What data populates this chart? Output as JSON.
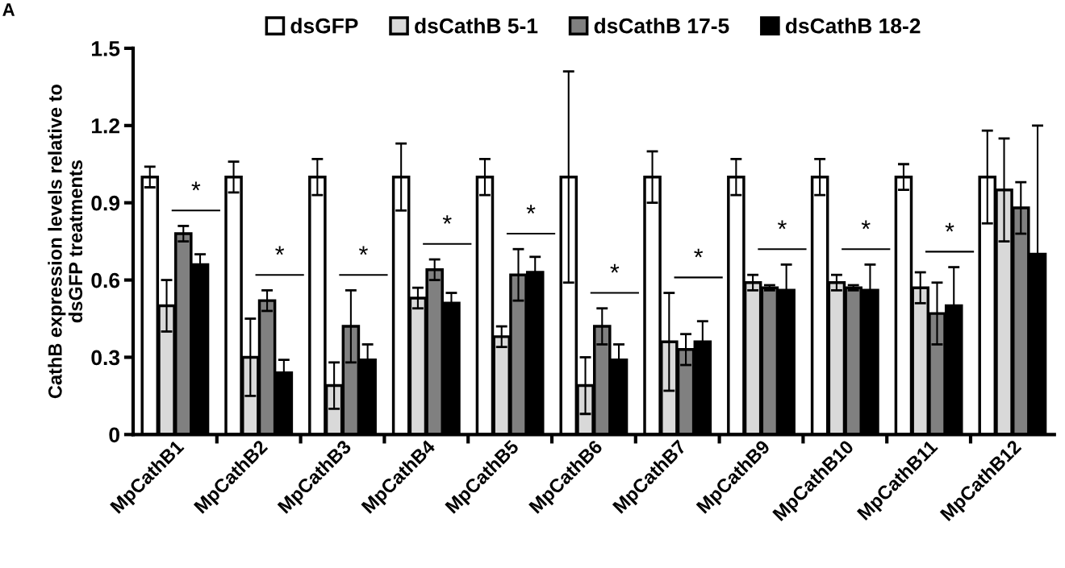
{
  "chart_data": {
    "type": "bar",
    "ylabel": "CathB expression levels relative to\ndsGFP treatments",
    "categories": [
      "MpCathB1",
      "MpCathB2",
      "MpCathB3",
      "MpCathB4",
      "MpCathB5",
      "MpCathB6",
      "MpCathB7",
      "MpCathB9",
      "MpCathB10",
      "MpCathB11",
      "MpCathB12"
    ],
    "series": [
      {
        "name": "dsGFP",
        "color": "#ffffff",
        "values": [
          1.0,
          1.0,
          1.0,
          1.0,
          1.0,
          1.0,
          1.0,
          1.0,
          1.0,
          1.0,
          1.0
        ],
        "errors": [
          0.04,
          0.06,
          0.07,
          0.13,
          0.07,
          0.41,
          0.1,
          0.07,
          0.07,
          0.05,
          0.18
        ]
      },
      {
        "name": "dsCathB 5-1",
        "color": "#d9d9d9",
        "values": [
          0.5,
          0.3,
          0.19,
          0.53,
          0.38,
          0.19,
          0.36,
          0.59,
          0.59,
          0.57,
          0.95
        ],
        "errors": [
          0.1,
          0.15,
          0.09,
          0.04,
          0.04,
          0.11,
          0.19,
          0.03,
          0.03,
          0.06,
          0.2
        ]
      },
      {
        "name": "dsCathB 17-5",
        "color": "#808080",
        "values": [
          0.78,
          0.52,
          0.42,
          0.64,
          0.62,
          0.42,
          0.33,
          0.57,
          0.57,
          0.47,
          0.88
        ],
        "errors": [
          0.03,
          0.04,
          0.14,
          0.04,
          0.1,
          0.07,
          0.06,
          0.01,
          0.01,
          0.12,
          0.1
        ]
      },
      {
        "name": "dsCathB 18-2",
        "color": "#000000",
        "values": [
          0.66,
          0.24,
          0.29,
          0.51,
          0.63,
          0.29,
          0.36,
          0.56,
          0.56,
          0.5,
          0.7
        ],
        "errors": [
          0.04,
          0.05,
          0.06,
          0.04,
          0.06,
          0.06,
          0.08,
          0.1,
          0.1,
          0.15,
          0.5
        ]
      }
    ],
    "ylim": [
      0,
      1.5
    ],
    "yticks": [
      {
        "value": 0,
        "label": "0"
      },
      0.3,
      0.6,
      0.9,
      1.2,
      1.5
    ],
    "grid": false,
    "legend": "top",
    "annotations": [
      "A",
      "*",
      "*",
      "*",
      "*",
      "*",
      "*",
      "*",
      "*",
      "*",
      "*"
    ]
  }
}
